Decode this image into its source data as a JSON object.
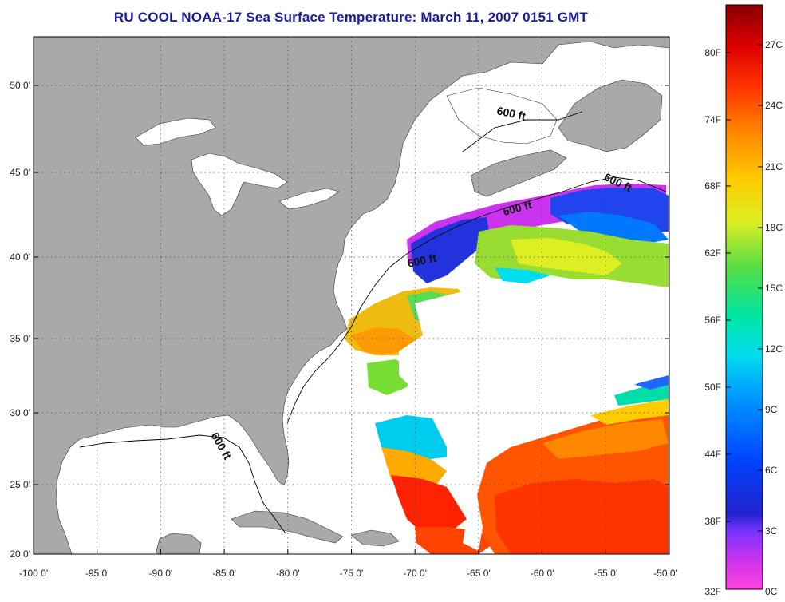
{
  "title": "RU COOL  NOAA-17  Sea Surface Temperature:  March 11, 2007 0151 GMT",
  "map": {
    "lon_range": [
      -100,
      -50
    ],
    "lat_range": [
      20,
      52
    ],
    "longitude_ticks": [
      "-100 0'",
      "-95 0'",
      "-90 0'",
      "-85 0'",
      "-80 0'",
      "-75 0'",
      "-70 0'",
      "-65 0'",
      "-60 0'",
      "-55 0'",
      "-50 0'"
    ],
    "latitude_ticks": [
      "50 0'",
      "45 0'",
      "40 0'",
      "35 0'",
      "30 0'",
      "25 0'",
      "20 0'"
    ],
    "grid": "dotted",
    "land_color": "#a9a9a9",
    "cloud_color": "#ffffff",
    "depth_contour_labels": [
      "600 ft",
      "600 ft",
      "600 ft",
      "600 ft",
      "600 ft"
    ]
  },
  "colorbar": {
    "fahrenheit_labels": [
      "80F",
      "74F",
      "68F",
      "62F",
      "56F",
      "50F",
      "44F",
      "38F",
      "32F"
    ],
    "celsius_labels": [
      "27C",
      "24C",
      "21C",
      "18C",
      "15C",
      "12C",
      "9C",
      "6C",
      "3C",
      "0C"
    ],
    "colors": [
      "#ff33dd",
      "#9933ff",
      "#2222dd",
      "#0066ff",
      "#00ccff",
      "#00e6a0",
      "#66dd33",
      "#ddee22",
      "#ffcc00",
      "#ff8800",
      "#ff3300",
      "#cc0000",
      "#8b0000"
    ]
  }
}
